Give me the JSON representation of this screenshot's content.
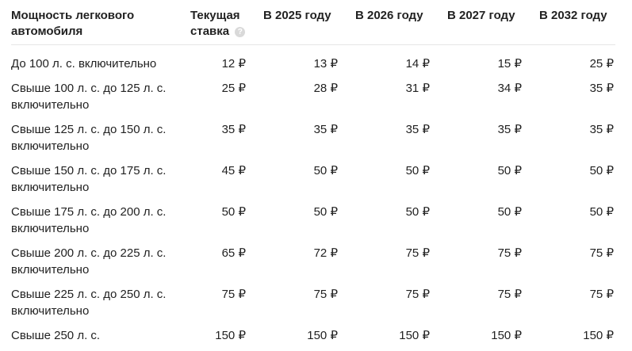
{
  "table": {
    "headers": [
      "Мощность легкового автомобиля",
      "Текущая ставка",
      "В 2025 году",
      "В 2026 году",
      "В 2027 году",
      "В 2032 году"
    ],
    "help_icon": "?",
    "rows": [
      [
        "До 100 л. с. включительно",
        "12 ₽",
        "13 ₽",
        "14 ₽",
        "15 ₽",
        "25 ₽"
      ],
      [
        "Свыше 100 л. с. до 125 л. с. включительно",
        "25 ₽",
        "28 ₽",
        "31 ₽",
        "34 ₽",
        "35 ₽"
      ],
      [
        "Свыше 125 л. с. до 150 л. с. включительно",
        "35 ₽",
        "35 ₽",
        "35 ₽",
        "35 ₽",
        "35 ₽"
      ],
      [
        "Свыше 150 л. с. до 175 л. с. включительно",
        "45 ₽",
        "50 ₽",
        "50 ₽",
        "50 ₽",
        "50 ₽"
      ],
      [
        "Свыше 175 л. с. до 200 л. с. включительно",
        "50 ₽",
        "50 ₽",
        "50 ₽",
        "50 ₽",
        "50 ₽"
      ],
      [
        "Свыше 200 л. с. до 225 л. с. включительно",
        "65 ₽",
        "72 ₽",
        "75 ₽",
        "75 ₽",
        "75 ₽"
      ],
      [
        "Свыше 225 л. с. до 250 л. с. включительно",
        "75 ₽",
        "75 ₽",
        "75 ₽",
        "75 ₽",
        "75 ₽"
      ],
      [
        "Свыше 250 л. с.",
        "150 ₽",
        "150 ₽",
        "150 ₽",
        "150 ₽",
        "150 ₽"
      ]
    ]
  }
}
